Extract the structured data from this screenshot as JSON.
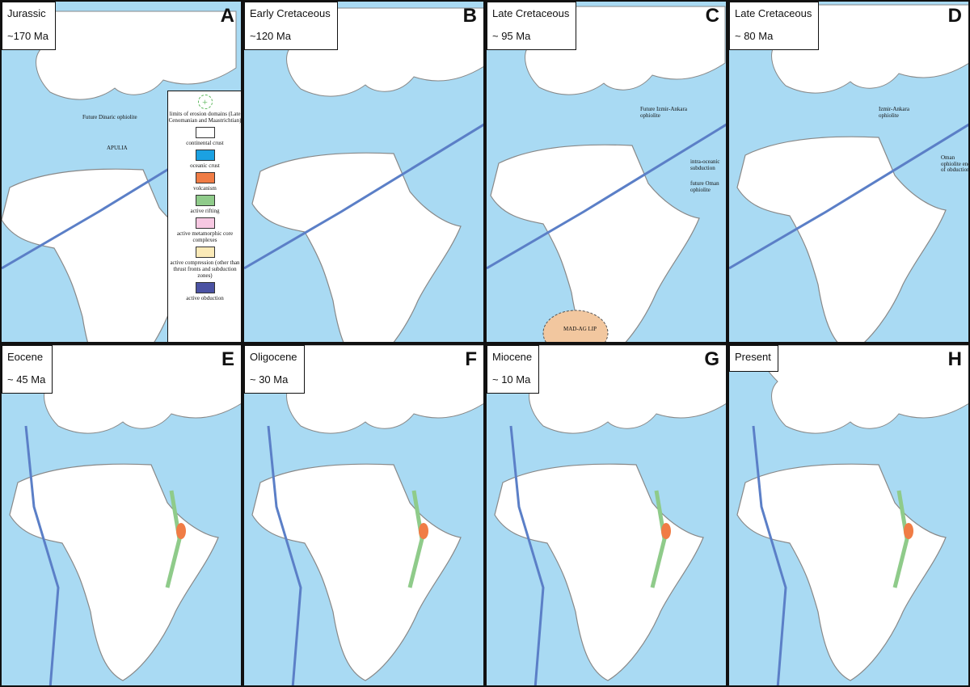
{
  "panels": [
    {
      "letter": "A",
      "period": "Jurassic",
      "age": "~170 Ma",
      "annotations": [
        "Future Dinaric ophiolite",
        "APULIA"
      ]
    },
    {
      "letter": "B",
      "period": "Early Cretaceous",
      "age": "~120 Ma",
      "annotations": []
    },
    {
      "letter": "C",
      "period": "Late Cretaceous",
      "age": "~ 95 Ma",
      "annotations": [
        "Future Izmir-Ankara ophiolite",
        "intra-oceanic subduction",
        "future Oman ophiolite",
        "MAD-AG LIP"
      ]
    },
    {
      "letter": "D",
      "period": "Late Cretaceous",
      "age": "~ 80 Ma",
      "annotations": [
        "Izmir-Ankara ophiolite",
        "Oman ophiolite end of obduction"
      ]
    },
    {
      "letter": "E",
      "period": "Eocene",
      "age": "~ 45 Ma",
      "annotations": []
    },
    {
      "letter": "F",
      "period": "Oligocene",
      "age": "~ 30 Ma",
      "annotations": []
    },
    {
      "letter": "G",
      "period": "Miocene",
      "age": "~ 10 Ma",
      "annotations": []
    },
    {
      "letter": "H",
      "period": "Present",
      "annotations": []
    }
  ],
  "legend": {
    "items": [
      {
        "label": "limits of erosion domains (Late Cenomanian and Maastrichtian)",
        "symbol": "dashed"
      },
      {
        "label": "continental crust",
        "color": "#ffffff"
      },
      {
        "label": "oceanic crust",
        "color": "#1ba1e2"
      },
      {
        "label": "volcanism",
        "color": "#f07c45"
      },
      {
        "label": "active rifting",
        "color": "#8fcb8a"
      },
      {
        "label": "active metamorphic core complexes",
        "color": "#f7c8e2"
      },
      {
        "label": "active compression (other than thrust fronts and subduction zones)",
        "color": "#fbeab8"
      },
      {
        "label": "active obduction",
        "color": "#4b52a3"
      }
    ]
  }
}
